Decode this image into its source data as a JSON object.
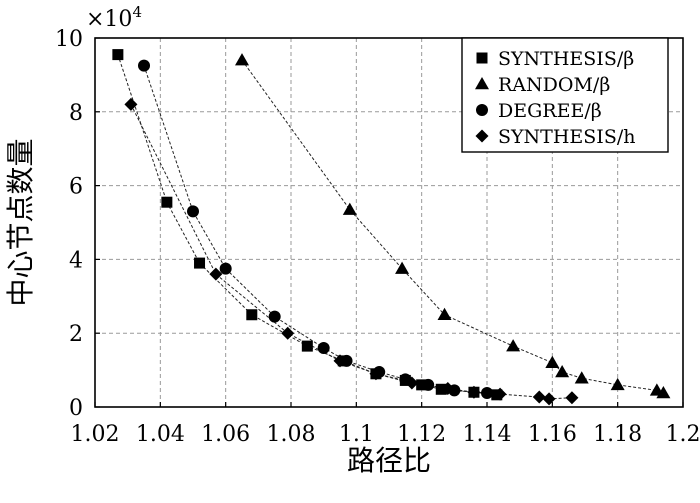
{
  "chart_data": {
    "type": "scatter",
    "xlabel": "路径比",
    "ylabel": "中心节点数量",
    "y_multiplier_text": "×10",
    "y_multiplier_exp": "4",
    "xlim": [
      1.02,
      1.2
    ],
    "ylim": [
      0,
      10
    ],
    "x_ticks": [
      "1.02",
      "1.04",
      "1.06",
      "1.08",
      "1.1",
      "1.12",
      "1.14",
      "1.16",
      "1.18",
      "1.2"
    ],
    "y_ticks": [
      "0",
      "2",
      "4",
      "6",
      "8",
      "10"
    ],
    "grid": true,
    "legend_position": "top-right",
    "series": [
      {
        "name": "SYNTHESIS/β",
        "marker": "square",
        "x": [
          1.027,
          1.042,
          1.052,
          1.068,
          1.085,
          1.096,
          1.106,
          1.115,
          1.12,
          1.126,
          1.136,
          1.143
        ],
        "y": [
          9.55,
          5.55,
          3.9,
          2.5,
          1.65,
          1.25,
          0.9,
          0.72,
          0.6,
          0.48,
          0.4,
          0.33
        ]
      },
      {
        "name": "RANDOM/β",
        "marker": "triangle",
        "x": [
          1.065,
          1.098,
          1.114,
          1.127,
          1.148,
          1.16,
          1.163,
          1.169,
          1.18,
          1.192,
          1.194
        ],
        "y": [
          9.4,
          5.35,
          3.75,
          2.5,
          1.65,
          1.2,
          0.95,
          0.78,
          0.6,
          0.45,
          0.38
        ]
      },
      {
        "name": "DEGREE/β",
        "marker": "circle",
        "x": [
          1.035,
          1.05,
          1.06,
          1.075,
          1.09,
          1.097,
          1.107,
          1.115,
          1.122,
          1.13,
          1.14
        ],
        "y": [
          9.25,
          5.3,
          3.75,
          2.45,
          1.6,
          1.25,
          0.95,
          0.75,
          0.6,
          0.45,
          0.38
        ]
      },
      {
        "name": "SYNTHESIS/h",
        "marker": "diamond",
        "x": [
          1.031,
          1.057,
          1.079,
          1.095,
          1.106,
          1.117,
          1.128,
          1.136,
          1.144,
          1.156,
          1.159,
          1.166
        ],
        "y": [
          8.2,
          3.6,
          2.0,
          1.25,
          0.9,
          0.65,
          0.5,
          0.4,
          0.35,
          0.27,
          0.22,
          0.25
        ]
      }
    ]
  }
}
